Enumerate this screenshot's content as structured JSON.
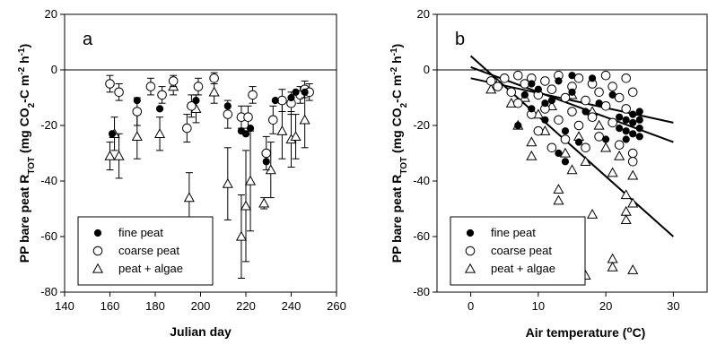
{
  "chart_data": [
    {
      "type": "scatter",
      "panel_label": "a",
      "xlabel": "Julian day",
      "ylabel_parts": [
        "PP bare peat R",
        "TOT",
        " (mg CO",
        "2",
        "-C m",
        "-2",
        " h",
        "-1",
        ")"
      ],
      "xlim": [
        140,
        260
      ],
      "ylim": [
        -80,
        20
      ],
      "x_ticks": [
        "140",
        "160",
        "180",
        "200",
        "220",
        "240",
        "260"
      ],
      "y_ticks": [
        "-80",
        "-60",
        "-40",
        "-20",
        "0",
        "20"
      ],
      "zero_line": true,
      "legend_position": "bottom-left",
      "series": [
        {
          "name": "fine peat",
          "marker": "filled-circle",
          "points": [
            {
              "x": 161,
              "y": -23
            },
            {
              "x": 172,
              "y": -11
            },
            {
              "x": 182,
              "y": -14
            },
            {
              "x": 198,
              "y": -11
            },
            {
              "x": 212,
              "y": -13
            },
            {
              "x": 218,
              "y": -22
            },
            {
              "x": 220,
              "y": -23
            },
            {
              "x": 222,
              "y": -21
            },
            {
              "x": 229,
              "y": -33
            },
            {
              "x": 233,
              "y": -11
            },
            {
              "x": 240,
              "y": -10
            },
            {
              "x": 242,
              "y": -8
            },
            {
              "x": 246,
              "y": -8
            }
          ]
        },
        {
          "name": "coarse peat",
          "marker": "open-circle",
          "points": [
            {
              "x": 160,
              "y": -5,
              "err": 3
            },
            {
              "x": 164,
              "y": -8,
              "err": 3
            },
            {
              "x": 172,
              "y": -15,
              "err": 5
            },
            {
              "x": 178,
              "y": -6,
              "err": 3
            },
            {
              "x": 183,
              "y": -9,
              "err": 3
            },
            {
              "x": 188,
              "y": -4,
              "err": 2
            },
            {
              "x": 194,
              "y": -21,
              "err": 5
            },
            {
              "x": 196,
              "y": -13,
              "err": 4
            },
            {
              "x": 199,
              "y": -6,
              "err": 3
            },
            {
              "x": 206,
              "y": -3,
              "err": 2
            },
            {
              "x": 212,
              "y": -16,
              "err": 5
            },
            {
              "x": 218,
              "y": -17,
              "err": 4
            },
            {
              "x": 221,
              "y": -17,
              "err": 4
            },
            {
              "x": 223,
              "y": -9,
              "err": 3
            },
            {
              "x": 229,
              "y": -30,
              "err": 6
            },
            {
              "x": 232,
              "y": -18,
              "err": 5
            },
            {
              "x": 236,
              "y": -11,
              "err": 4
            },
            {
              "x": 240,
              "y": -12,
              "err": 4
            },
            {
              "x": 244,
              "y": -9,
              "err": 3
            },
            {
              "x": 246,
              "y": -7,
              "err": 3
            },
            {
              "x": 248,
              "y": -8,
              "err": 3
            }
          ]
        },
        {
          "name": "peat + algae",
          "marker": "open-triangle",
          "points": [
            {
              "x": 160,
              "y": -31,
              "err": 5
            },
            {
              "x": 162,
              "y": -23,
              "err": 6
            },
            {
              "x": 164,
              "y": -31,
              "err": 8
            },
            {
              "x": 172,
              "y": -24,
              "err": 8
            },
            {
              "x": 182,
              "y": -23,
              "err": 6
            },
            {
              "x": 188,
              "y": -6,
              "err": 3
            },
            {
              "x": 195,
              "y": -46,
              "err": 9
            },
            {
              "x": 198,
              "y": -14,
              "err": 5
            },
            {
              "x": 206,
              "y": -8,
              "err": 4
            },
            {
              "x": 212,
              "y": -41,
              "err": 13
            },
            {
              "x": 218,
              "y": -60,
              "err": 15
            },
            {
              "x": 220,
              "y": -49,
              "err": 20
            },
            {
              "x": 222,
              "y": -40,
              "err": 18
            },
            {
              "x": 228,
              "y": -48,
              "err": 2
            },
            {
              "x": 231,
              "y": -36,
              "err": 10
            },
            {
              "x": 236,
              "y": -22,
              "err": 10
            },
            {
              "x": 240,
              "y": -25,
              "err": 10
            },
            {
              "x": 242,
              "y": -24,
              "err": 8
            },
            {
              "x": 246,
              "y": -18,
              "err": 10
            }
          ]
        }
      ]
    },
    {
      "type": "scatter",
      "panel_label": "b",
      "xlabel_parts": [
        "Air temperature (",
        "o",
        "C)"
      ],
      "ylabel_parts": [
        "PP bare peat R",
        "TOT",
        " (mg CO",
        "2",
        "-C m",
        "-2",
        " h",
        "-1",
        ")"
      ],
      "xlim": [
        -5,
        35
      ],
      "ylim": [
        -80,
        20
      ],
      "x_ticks": [
        "0",
        "10",
        "20",
        "30"
      ],
      "y_ticks": [
        "-80",
        "-60",
        "-40",
        "-20",
        "0",
        "20"
      ],
      "zero_line": true,
      "legend_position": "bottom-left",
      "regression_lines": [
        {
          "x": [
            0,
            30
          ],
          "y": [
            -3,
            -19
          ]
        },
        {
          "x": [
            0,
            30
          ],
          "y": [
            1,
            -26
          ]
        },
        {
          "x": [
            0,
            30
          ],
          "y": [
            5,
            -60
          ]
        }
      ],
      "series": [
        {
          "name": "fine peat",
          "marker": "filled-circle",
          "points": [
            {
              "x": 7,
              "y": -20
            },
            {
              "x": 8,
              "y": -9
            },
            {
              "x": 9,
              "y": -5
            },
            {
              "x": 10,
              "y": -7
            },
            {
              "x": 11,
              "y": -12
            },
            {
              "x": 11,
              "y": -18
            },
            {
              "x": 12,
              "y": -11
            },
            {
              "x": 13,
              "y": -4
            },
            {
              "x": 13,
              "y": -30
            },
            {
              "x": 14,
              "y": -22
            },
            {
              "x": 15,
              "y": -2
            },
            {
              "x": 15,
              "y": -8
            },
            {
              "x": 16,
              "y": -26
            },
            {
              "x": 17,
              "y": -15
            },
            {
              "x": 18,
              "y": -3
            },
            {
              "x": 19,
              "y": -12
            },
            {
              "x": 20,
              "y": -25
            },
            {
              "x": 21,
              "y": -9
            },
            {
              "x": 22,
              "y": -17
            },
            {
              "x": 22,
              "y": -21
            },
            {
              "x": 23,
              "y": -18
            },
            {
              "x": 23,
              "y": -22
            },
            {
              "x": 23,
              "y": -25
            },
            {
              "x": 24,
              "y": -16
            },
            {
              "x": 24,
              "y": -19
            },
            {
              "x": 24,
              "y": -23
            },
            {
              "x": 25,
              "y": -15
            },
            {
              "x": 25,
              "y": -18
            },
            {
              "x": 25,
              "y": -21
            },
            {
              "x": 25,
              "y": -24
            },
            {
              "x": 14,
              "y": -33
            },
            {
              "x": 9,
              "y": -14
            }
          ]
        },
        {
          "name": "coarse peat",
          "marker": "open-circle",
          "points": [
            {
              "x": 3,
              "y": -4
            },
            {
              "x": 4,
              "y": -6
            },
            {
              "x": 5,
              "y": -3
            },
            {
              "x": 6,
              "y": -8
            },
            {
              "x": 7,
              "y": -2
            },
            {
              "x": 7,
              "y": -12
            },
            {
              "x": 8,
              "y": -5
            },
            {
              "x": 9,
              "y": -3
            },
            {
              "x": 9,
              "y": -16
            },
            {
              "x": 10,
              "y": -9
            },
            {
              "x": 10,
              "y": -22
            },
            {
              "x": 11,
              "y": -4
            },
            {
              "x": 11,
              "y": -14
            },
            {
              "x": 12,
              "y": -7
            },
            {
              "x": 12,
              "y": -28
            },
            {
              "x": 13,
              "y": -2
            },
            {
              "x": 13,
              "y": -18
            },
            {
              "x": 14,
              "y": -10
            },
            {
              "x": 14,
              "y": -25
            },
            {
              "x": 15,
              "y": -6
            },
            {
              "x": 15,
              "y": -15
            },
            {
              "x": 16,
              "y": -3
            },
            {
              "x": 16,
              "y": -20
            },
            {
              "x": 17,
              "y": -11
            },
            {
              "x": 17,
              "y": -28
            },
            {
              "x": 18,
              "y": -5
            },
            {
              "x": 18,
              "y": -17
            },
            {
              "x": 19,
              "y": -8
            },
            {
              "x": 19,
              "y": -24
            },
            {
              "x": 20,
              "y": -2
            },
            {
              "x": 20,
              "y": -13
            },
            {
              "x": 21,
              "y": -6
            },
            {
              "x": 21,
              "y": -19
            },
            {
              "x": 22,
              "y": -10
            },
            {
              "x": 22,
              "y": -27
            },
            {
              "x": 23,
              "y": -3
            },
            {
              "x": 23,
              "y": -14
            },
            {
              "x": 24,
              "y": -8
            },
            {
              "x": 24,
              "y": -30
            },
            {
              "x": 24,
              "y": -33
            }
          ]
        },
        {
          "name": "peat + algae",
          "marker": "open-triangle",
          "points": [
            {
              "x": 3,
              "y": -7
            },
            {
              "x": 4,
              "y": -5
            },
            {
              "x": 6,
              "y": -12
            },
            {
              "x": 7,
              "y": -20
            },
            {
              "x": 8,
              "y": -10
            },
            {
              "x": 9,
              "y": -26
            },
            {
              "x": 9,
              "y": -31
            },
            {
              "x": 10,
              "y": -16
            },
            {
              "x": 11,
              "y": -22
            },
            {
              "x": 12,
              "y": -13
            },
            {
              "x": 13,
              "y": -43
            },
            {
              "x": 13,
              "y": -47
            },
            {
              "x": 14,
              "y": -30
            },
            {
              "x": 15,
              "y": -9
            },
            {
              "x": 15,
              "y": -36
            },
            {
              "x": 16,
              "y": -24
            },
            {
              "x": 17,
              "y": -74
            },
            {
              "x": 17,
              "y": -33
            },
            {
              "x": 18,
              "y": -52
            },
            {
              "x": 19,
              "y": -20
            },
            {
              "x": 20,
              "y": -28
            },
            {
              "x": 21,
              "y": -68
            },
            {
              "x": 21,
              "y": -71
            },
            {
              "x": 21,
              "y": -37
            },
            {
              "x": 22,
              "y": -31
            },
            {
              "x": 23,
              "y": -45
            },
            {
              "x": 23,
              "y": -51
            },
            {
              "x": 23,
              "y": -54
            },
            {
              "x": 24,
              "y": -72
            },
            {
              "x": 24,
              "y": -38
            },
            {
              "x": 24,
              "y": -48
            },
            {
              "x": 18,
              "y": -15
            }
          ]
        }
      ]
    }
  ]
}
